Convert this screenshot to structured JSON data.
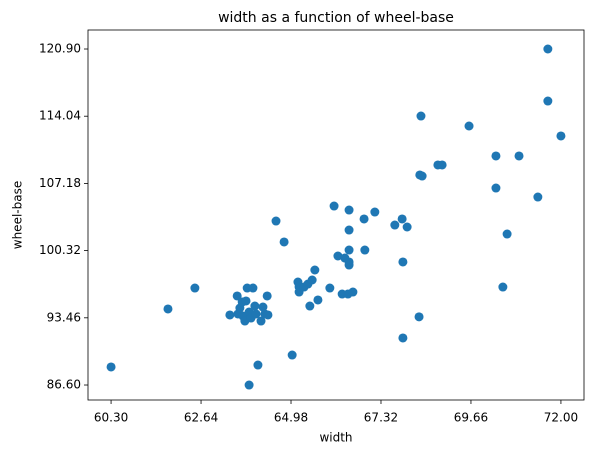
{
  "chart_data": {
    "type": "scatter",
    "title": "width as a function of wheel-base",
    "xlabel": "width",
    "ylabel": "wheel-base",
    "xlim": [
      59.7,
      72.6
    ],
    "ylim": [
      85.07,
      122.84
    ],
    "xticks": [
      {
        "value": 60.3,
        "label": "60.30"
      },
      {
        "value": 62.64,
        "label": "62.64"
      },
      {
        "value": 64.98,
        "label": "64.98"
      },
      {
        "value": 67.32,
        "label": "67.32"
      },
      {
        "value": 69.66,
        "label": "69.66"
      },
      {
        "value": 72.0,
        "label": "72.00"
      }
    ],
    "yticks": [
      {
        "value": 86.6,
        "label": "86.60"
      },
      93.46,
      100.32,
      107.18,
      114.04,
      {
        "value": 120.9,
        "label": "120.90"
      }
    ],
    "color": "#1f77b4",
    "x": [
      60.3,
      61.78,
      62.48,
      63.39,
      63.58,
      63.6,
      63.65,
      63.71,
      63.73,
      63.78,
      63.81,
      63.84,
      63.89,
      63.94,
      63.99,
      64.04,
      64.07,
      64.12,
      64.2,
      64.25,
      64.3,
      64.36,
      64.38,
      63.89,
      64.59,
      64.8,
      65.01,
      65.16,
      65.19,
      65.19,
      65.32,
      65.42,
      65.47,
      65.53,
      65.6,
      65.68,
      65.99,
      66.1,
      66.2,
      66.31,
      66.38,
      66.46,
      66.49,
      66.49,
      66.49,
      66.49,
      66.49,
      66.59,
      66.88,
      66.9,
      67.16,
      67.68,
      67.87,
      67.89,
      67.89,
      68.0,
      68.31,
      68.33,
      68.39,
      68.36,
      68.8,
      68.91,
      69.61,
      70.31,
      70.31,
      70.49,
      70.6,
      70.91,
      71.4,
      71.66,
      71.66,
      72.0
    ],
    "values": [
      88.44,
      94.36,
      96.5,
      93.75,
      95.69,
      93.85,
      94.46,
      95.07,
      93.64,
      93.13,
      95.18,
      96.5,
      94.05,
      93.44,
      96.5,
      94.66,
      93.85,
      88.64,
      93.13,
      94.56,
      93.85,
      95.69,
      93.75,
      86.6,
      103.34,
      101.2,
      89.66,
      97.11,
      96.6,
      96.09,
      96.6,
      96.91,
      94.66,
      97.32,
      98.34,
      95.28,
      96.5,
      104.87,
      99.77,
      95.89,
      99.56,
      95.89,
      104.46,
      102.42,
      100.38,
      99.16,
      98.85,
      96.09,
      103.55,
      100.38,
      104.26,
      102.93,
      103.55,
      99.16,
      91.4,
      102.73,
      93.56,
      108.04,
      107.93,
      114.06,
      109.06,
      109.06,
      113.04,
      109.98,
      106.71,
      96.6,
      102.01,
      109.98,
      105.79,
      115.59,
      120.9,
      112.02
    ]
  }
}
